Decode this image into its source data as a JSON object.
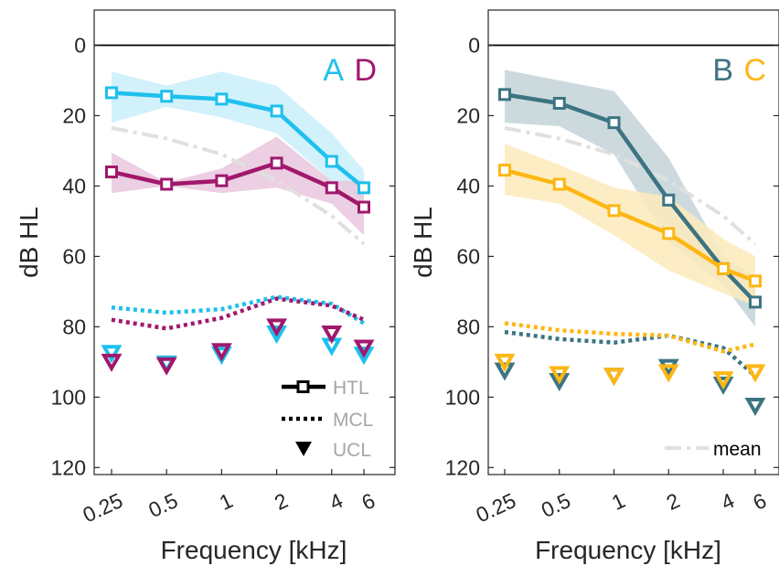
{
  "chart_data": [
    {
      "type": "line",
      "panel": "left",
      "xlabel": "Frequency [kHz]",
      "ylabel": "dB HL",
      "xscale": "log",
      "x": [
        0.25,
        0.5,
        1,
        2,
        4,
        6
      ],
      "x_tick_labels": [
        "0.25",
        "0.5",
        "1",
        "2",
        "4",
        "6"
      ],
      "y_ticks": [
        0,
        20,
        40,
        60,
        80,
        100,
        120
      ],
      "ylim": [
        -10,
        122
      ],
      "y_reversed": true,
      "panel_labels": [
        {
          "text": "A",
          "color": "#1ec0ed"
        },
        {
          "text": "D",
          "color": "#a0186c"
        }
      ],
      "legend": {
        "placement": "lower-right",
        "items": [
          {
            "label": "HTL",
            "style": "solid line with square markers"
          },
          {
            "label": "MCL",
            "style": "dotted line"
          },
          {
            "label": "UCL",
            "style": "downward triangle"
          }
        ]
      },
      "mean": {
        "htl_x": [
          0.25,
          0.5,
          1,
          2,
          4,
          6
        ],
        "htl": [
          23.5,
          26.5,
          31,
          38.5,
          48.5,
          56.5
        ],
        "color": "#e0e0e0"
      },
      "series": [
        {
          "name": "A",
          "color": "#1ec0ed",
          "band_color": "#c9eefa",
          "htl_x": [
            0.25,
            0.5,
            1,
            2,
            4,
            6
          ],
          "htl": [
            13.5,
            14.5,
            15.3,
            18.7,
            33,
            40.5
          ],
          "htl_lower": [
            7.5,
            11.5,
            7.5,
            11.5,
            25,
            35.5
          ],
          "htl_upper": [
            22,
            17.5,
            20.5,
            25,
            38.5,
            44
          ],
          "mcl_x": [
            0.25,
            0.5,
            1,
            2,
            4,
            6
          ],
          "mcl": [
            74.5,
            76,
            75,
            71.5,
            73.5,
            79
          ],
          "ucl_x": [
            0.25,
            0.5,
            1,
            2,
            4,
            6
          ],
          "ucl": [
            87.5,
            90.5,
            88,
            82,
            85.5,
            88
          ]
        },
        {
          "name": "D",
          "color": "#a0186c",
          "band_color": "#e9c7dd",
          "htl_x": [
            0.25,
            0.5,
            1,
            2,
            4,
            6
          ],
          "htl": [
            36,
            39.5,
            38.5,
            33.5,
            40.5,
            46
          ],
          "htl_lower": [
            30.5,
            39,
            35,
            26,
            38.5,
            38.5
          ],
          "htl_upper": [
            42,
            40,
            42,
            40.5,
            45,
            54
          ],
          "mcl_x": [
            0.25,
            0.5,
            1,
            2,
            4,
            6
          ],
          "mcl": [
            78,
            80.5,
            77.5,
            72,
            74,
            78
          ],
          "ucl_x": [
            0.25,
            0.5,
            1,
            2,
            4,
            6
          ],
          "ucl": [
            90,
            91,
            87,
            80,
            82,
            86
          ]
        }
      ]
    },
    {
      "type": "line",
      "panel": "right",
      "xlabel": "Frequency [kHz]",
      "ylabel": "dB HL",
      "xscale": "log",
      "x": [
        0.25,
        0.5,
        1,
        2,
        4,
        6
      ],
      "x_tick_labels": [
        "0.25",
        "0.5",
        "1",
        "2",
        "4",
        "6"
      ],
      "y_ticks": [
        0,
        20,
        40,
        60,
        80,
        100,
        120
      ],
      "ylim": [
        -10,
        122
      ],
      "y_reversed": true,
      "panel_labels": [
        {
          "text": "B",
          "color": "#3c7482"
        },
        {
          "text": "C",
          "color": "#fcb713"
        }
      ],
      "legend": {
        "placement": "bottom-right",
        "items": [
          {
            "label": "mean",
            "style": "dash-dot light gray line"
          }
        ]
      },
      "mean": {
        "htl_x": [
          0.25,
          0.5,
          1,
          2,
          4,
          6
        ],
        "htl": [
          23.5,
          26.5,
          31,
          38.5,
          48.5,
          56.5
        ],
        "color": "#e0e0e0"
      },
      "series": [
        {
          "name": "B",
          "color": "#3c7482",
          "band_color": "#c3d3d8",
          "htl_x": [
            0.25,
            0.5,
            1,
            2,
            4,
            6
          ],
          "htl": [
            14,
            16.5,
            22,
            44,
            63.5,
            73
          ],
          "htl_lower": [
            7,
            10,
            13,
            32,
            60,
            66
          ],
          "htl_upper": [
            22,
            23,
            31,
            56,
            68,
            80
          ],
          "mcl_x": [
            0.25,
            0.5,
            1,
            2,
            4,
            6
          ],
          "mcl": [
            81.5,
            83.5,
            84.5,
            82.5,
            86,
            94
          ],
          "ucl_x": [
            0.25,
            0.5,
            1,
            2,
            4,
            6
          ],
          "ucl": [
            92.5,
            95.5,
            94,
            91.5,
            96.5,
            102.5
          ]
        },
        {
          "name": "C",
          "color": "#fcb713",
          "band_color": "#fdeabb",
          "htl_x": [
            0.25,
            0.5,
            1,
            2,
            4,
            6
          ],
          "htl": [
            35.5,
            39.5,
            47,
            53.5,
            63.5,
            67
          ],
          "htl_lower": [
            28,
            34,
            40.5,
            43,
            55,
            60
          ],
          "htl_upper": [
            42.5,
            45,
            54,
            64,
            70.5,
            74
          ],
          "mcl_x": [
            0.25,
            0.5,
            1,
            2,
            4,
            6
          ],
          "mcl": [
            79,
            81,
            82,
            82.5,
            87,
            85
          ],
          "ucl_x": [
            0.25,
            0.5,
            1,
            2,
            4,
            6
          ],
          "ucl": [
            90,
            93.5,
            94,
            93,
            95,
            93
          ]
        }
      ]
    }
  ]
}
